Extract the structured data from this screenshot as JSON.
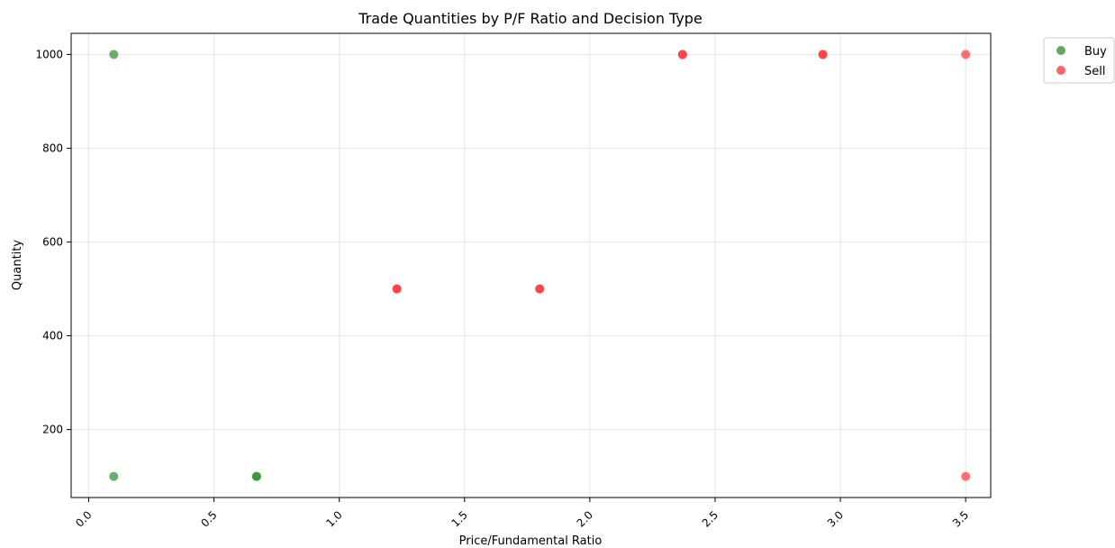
{
  "chart_data": {
    "type": "scatter",
    "title": "Trade Quantities by P/F Ratio and Decision Type",
    "xlabel": "Price/Fundamental Ratio",
    "ylabel": "Quantity",
    "xlim": [
      -0.07,
      3.6
    ],
    "ylim": [
      55,
      1045
    ],
    "xticks": [
      "0.0",
      "0.5",
      "1.0",
      "1.5",
      "2.0",
      "2.5",
      "3.0",
      "3.5"
    ],
    "yticks": [
      "200",
      "400",
      "600",
      "800",
      "1000"
    ],
    "grid": true,
    "legend_position": "outside-top-right",
    "series": [
      {
        "name": "Buy",
        "color": "#2e8b2e",
        "points": [
          {
            "x": 0.1,
            "y": 1000
          },
          {
            "x": 0.1,
            "y": 100
          },
          {
            "x": 0.67,
            "y": 100
          },
          {
            "x": 0.67,
            "y": 100
          }
        ]
      },
      {
        "name": "Sell",
        "color": "#ff3333",
        "points": [
          {
            "x": 1.23,
            "y": 500
          },
          {
            "x": 1.23,
            "y": 500
          },
          {
            "x": 1.8,
            "y": 500
          },
          {
            "x": 1.8,
            "y": 500
          },
          {
            "x": 2.37,
            "y": 1000
          },
          {
            "x": 2.37,
            "y": 1000
          },
          {
            "x": 2.93,
            "y": 1000
          },
          {
            "x": 2.93,
            "y": 1000
          },
          {
            "x": 3.5,
            "y": 1000
          },
          {
            "x": 3.5,
            "y": 100
          }
        ]
      }
    ]
  }
}
